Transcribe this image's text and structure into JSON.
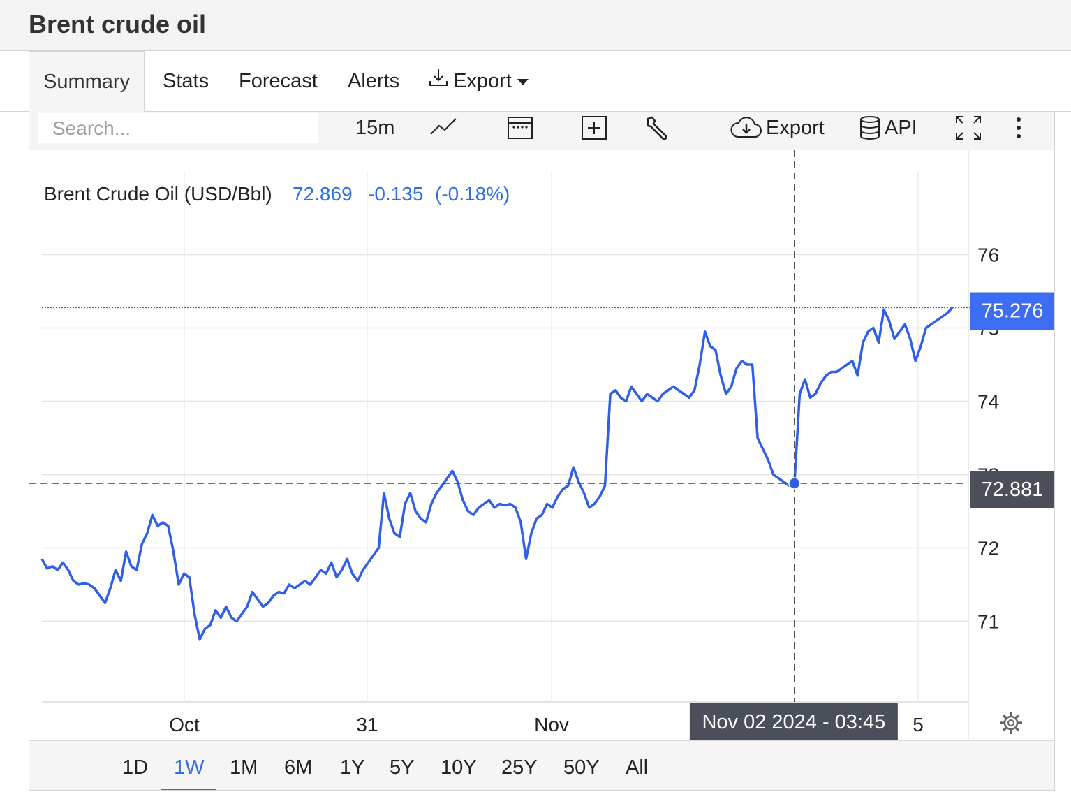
{
  "page_title": "Brent crude oil",
  "tabs": {
    "summary": "Summary",
    "stats": "Stats",
    "forecast": "Forecast",
    "alerts": "Alerts",
    "export": "Export"
  },
  "toolbar": {
    "search_placeholder": "Search...",
    "interval": "15m",
    "export": "Export",
    "api": "API"
  },
  "timeframes": [
    "1D",
    "1W",
    "1M",
    "6M",
    "1Y",
    "5Y",
    "10Y",
    "25Y",
    "50Y",
    "All"
  ],
  "active_timeframe": "1W",
  "colors": {
    "line": "#2f5fe6",
    "accent": "#2f6fe4",
    "crosshair_label_bg": "#4a4f59",
    "grid": "#e6e6e6"
  },
  "icons": [
    "line-chart-icon",
    "calendar-icon",
    "plus-box-icon",
    "wrench-icon",
    "cloud-download-icon",
    "database-icon",
    "fullscreen-icon",
    "more-vertical-icon",
    "gear-icon",
    "download-icon"
  ],
  "chart_data": {
    "type": "line",
    "title": "Brent Crude Oil (USD/Bbl)",
    "last_value": "72.869",
    "change": "-0.135",
    "change_pct": "(-0.18%)",
    "current_label": "75.276",
    "crosshair": {
      "value": "72.881",
      "date": "Nov 02 2024 - 03:45"
    },
    "y_ticks": [
      "76",
      "75",
      "74",
      "73",
      "72",
      "71"
    ],
    "x_ticks": [
      "Oct",
      "31",
      "Nov",
      "5"
    ],
    "ylim": [
      69.9,
      76.9
    ],
    "grid": true,
    "series": [
      {
        "values": [
          71.85,
          71.72,
          71.75,
          71.7,
          71.8,
          71.7,
          71.55,
          71.5,
          71.52,
          71.5,
          71.45,
          71.35,
          71.25,
          71.45,
          71.7,
          71.55,
          71.95,
          71.75,
          71.7,
          72.05,
          72.2,
          72.45,
          72.3,
          72.35,
          72.3,
          71.95,
          71.5,
          71.65,
          71.6,
          71.1,
          70.75,
          70.9,
          70.95,
          71.15,
          71.05,
          71.2,
          71.05,
          71.0,
          71.1,
          71.2,
          71.4,
          71.3,
          71.2,
          71.25,
          71.35,
          71.4,
          71.38,
          71.5,
          71.45,
          71.5,
          71.55,
          71.5,
          71.6,
          71.7,
          71.65,
          71.8,
          71.6,
          71.7,
          71.85,
          71.65,
          71.55,
          71.7,
          71.8,
          71.9,
          72.0,
          72.75,
          72.4,
          72.2,
          72.15,
          72.6,
          72.75,
          72.5,
          72.4,
          72.35,
          72.6,
          72.75,
          72.85,
          72.95,
          73.05,
          72.9,
          72.65,
          72.5,
          72.45,
          72.55,
          72.6,
          72.65,
          72.55,
          72.6,
          72.58,
          72.6,
          72.55,
          72.35,
          71.85,
          72.2,
          72.4,
          72.45,
          72.6,
          72.55,
          72.7,
          72.8,
          72.85,
          73.1,
          72.9,
          72.75,
          72.55,
          72.6,
          72.7,
          72.85,
          74.1,
          74.15,
          74.05,
          74.0,
          74.2,
          74.1,
          74.0,
          74.1,
          74.05,
          74.0,
          74.1,
          74.15,
          74.2,
          74.15,
          74.1,
          74.05,
          74.15,
          74.5,
          74.95,
          74.75,
          74.7,
          74.35,
          74.1,
          74.2,
          74.45,
          74.55,
          74.5,
          74.5,
          73.5,
          73.35,
          73.2,
          73.0,
          72.95,
          72.9,
          72.85,
          72.881,
          74.1,
          74.3,
          74.05,
          74.1,
          74.25,
          74.35,
          74.4,
          74.4,
          74.45,
          74.5,
          74.55,
          74.35,
          74.8,
          74.95,
          75.0,
          74.8,
          75.25,
          75.1,
          74.85,
          74.95,
          75.05,
          74.85,
          74.55,
          74.75,
          75.0,
          75.05,
          75.1,
          75.15,
          75.2,
          75.276
        ]
      }
    ]
  }
}
